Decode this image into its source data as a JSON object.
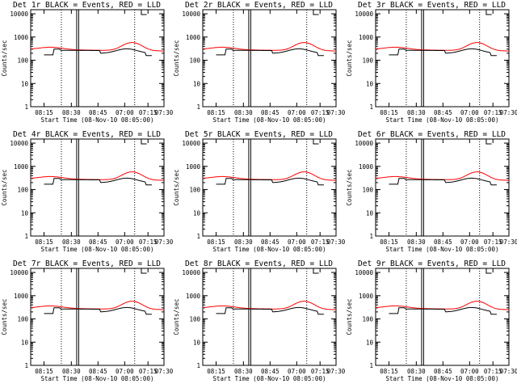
{
  "chart_data": [
    {
      "type": "line",
      "title": "Det 1r BLACK = Events, RED = LLD",
      "ylabel": "Counts/sec",
      "xlabel": "Start Time (08-Nov-10 08:05:00)",
      "x_ticks": [
        "08:15",
        "08:30",
        "08:45",
        "07:00",
        "07:15",
        "07:30"
      ],
      "y_ticks": [
        "1",
        "10",
        "100",
        "1000",
        "10000"
      ],
      "ylim": [
        1,
        10000
      ],
      "series": [
        {
          "name": "Events",
          "color": "#000000"
        },
        {
          "name": "LLD",
          "color": "#ff0000"
        }
      ]
    },
    {
      "type": "line",
      "title": "Det 2r BLACK = Events, RED = LLD",
      "ylabel": "Counts/sec",
      "xlabel": "Start Time (08-Nov-10 08:05:00)",
      "x_ticks": [
        "08:15",
        "08:30",
        "08:45",
        "07:00",
        "07:15",
        "07:30"
      ],
      "y_ticks": [
        "1",
        "10",
        "100",
        "1000",
        "10000"
      ],
      "ylim": [
        1,
        10000
      ],
      "series": [
        {
          "name": "Events",
          "color": "#000000"
        },
        {
          "name": "LLD",
          "color": "#ff0000"
        }
      ]
    },
    {
      "type": "line",
      "title": "Det 3r BLACK = Events, RED = LLD",
      "ylabel": "Counts/sec",
      "xlabel": "Start Time (08-Nov-10 08:05:00)",
      "x_ticks": [
        "08:15",
        "08:30",
        "08:45",
        "07:00",
        "07:15",
        "07:30"
      ],
      "y_ticks": [
        "1",
        "10",
        "100",
        "1000",
        "10000"
      ],
      "ylim": [
        1,
        10000
      ],
      "series": [
        {
          "name": "Events",
          "color": "#000000"
        },
        {
          "name": "LLD",
          "color": "#ff0000"
        }
      ]
    },
    {
      "type": "line",
      "title": "Det 4r BLACK = Events, RED = LLD",
      "ylabel": "Counts/sec",
      "xlabel": "Start Time (08-Nov-10 08:05:00)",
      "x_ticks": [
        "08:15",
        "08:30",
        "08:45",
        "07:00",
        "07:15",
        "07:30"
      ],
      "y_ticks": [
        "1",
        "10",
        "100",
        "1000",
        "10000"
      ],
      "ylim": [
        1,
        10000
      ],
      "series": [
        {
          "name": "Events",
          "color": "#000000"
        },
        {
          "name": "LLD",
          "color": "#ff0000"
        }
      ]
    },
    {
      "type": "line",
      "title": "Det 5r BLACK = Events, RED = LLD",
      "ylabel": "Counts/sec",
      "xlabel": "Start Time (08-Nov-10 08:05:00)",
      "x_ticks": [
        "08:15",
        "08:30",
        "08:45",
        "07:00",
        "07:15",
        "07:30"
      ],
      "y_ticks": [
        "1",
        "10",
        "100",
        "1000",
        "10000"
      ],
      "ylim": [
        1,
        10000
      ],
      "series": [
        {
          "name": "Events",
          "color": "#000000"
        },
        {
          "name": "LLD",
          "color": "#ff0000"
        }
      ]
    },
    {
      "type": "line",
      "title": "Det 6r BLACK = Events, RED = LLD",
      "ylabel": "Counts/sec",
      "xlabel": "Start Time (08-Nov-10 08:05:00)",
      "x_ticks": [
        "08:15",
        "08:30",
        "08:45",
        "07:00",
        "07:15",
        "07:30"
      ],
      "y_ticks": [
        "1",
        "10",
        "100",
        "1000",
        "10000"
      ],
      "ylim": [
        1,
        10000
      ],
      "series": [
        {
          "name": "Events",
          "color": "#000000"
        },
        {
          "name": "LLD",
          "color": "#ff0000"
        }
      ]
    },
    {
      "type": "line",
      "title": "Det 7r BLACK = Events, RED = LLD",
      "ylabel": "Counts/sec",
      "xlabel": "Start Time (08-Nov-10 08:05:00)",
      "x_ticks": [
        "08:15",
        "08:30",
        "08:45",
        "07:00",
        "07:15",
        "07:30"
      ],
      "y_ticks": [
        "1",
        "10",
        "100",
        "1000",
        "10000"
      ],
      "ylim": [
        1,
        10000
      ],
      "series": [
        {
          "name": "Events",
          "color": "#000000"
        },
        {
          "name": "LLD",
          "color": "#ff0000"
        }
      ]
    },
    {
      "type": "line",
      "title": "Det 8r BLACK = Events, RED = LLD",
      "ylabel": "Counts/sec",
      "xlabel": "Start Time (08-Nov-10 08:05:00)",
      "x_ticks": [
        "08:15",
        "08:30",
        "08:45",
        "07:00",
        "07:15",
        "07:30"
      ],
      "y_ticks": [
        "1",
        "10",
        "100",
        "1000",
        "10000"
      ],
      "ylim": [
        1,
        10000
      ],
      "series": [
        {
          "name": "Events",
          "color": "#000000"
        },
        {
          "name": "LLD",
          "color": "#ff0000"
        }
      ]
    },
    {
      "type": "line",
      "title": "Det 9r BLACK = Events, RED = LLD",
      "ylabel": "Counts/sec",
      "xlabel": "Start Time (08-Nov-10 08:05:00)",
      "x_ticks": [
        "08:15",
        "08:30",
        "08:45",
        "07:00",
        "07:15",
        "07:30"
      ],
      "y_ticks": [
        "1",
        "10",
        "100",
        "1000",
        "10000"
      ],
      "ylim": [
        1,
        10000
      ],
      "series": [
        {
          "name": "Events",
          "color": "#000000"
        },
        {
          "name": "LLD",
          "color": "#ff0000"
        }
      ]
    }
  ]
}
